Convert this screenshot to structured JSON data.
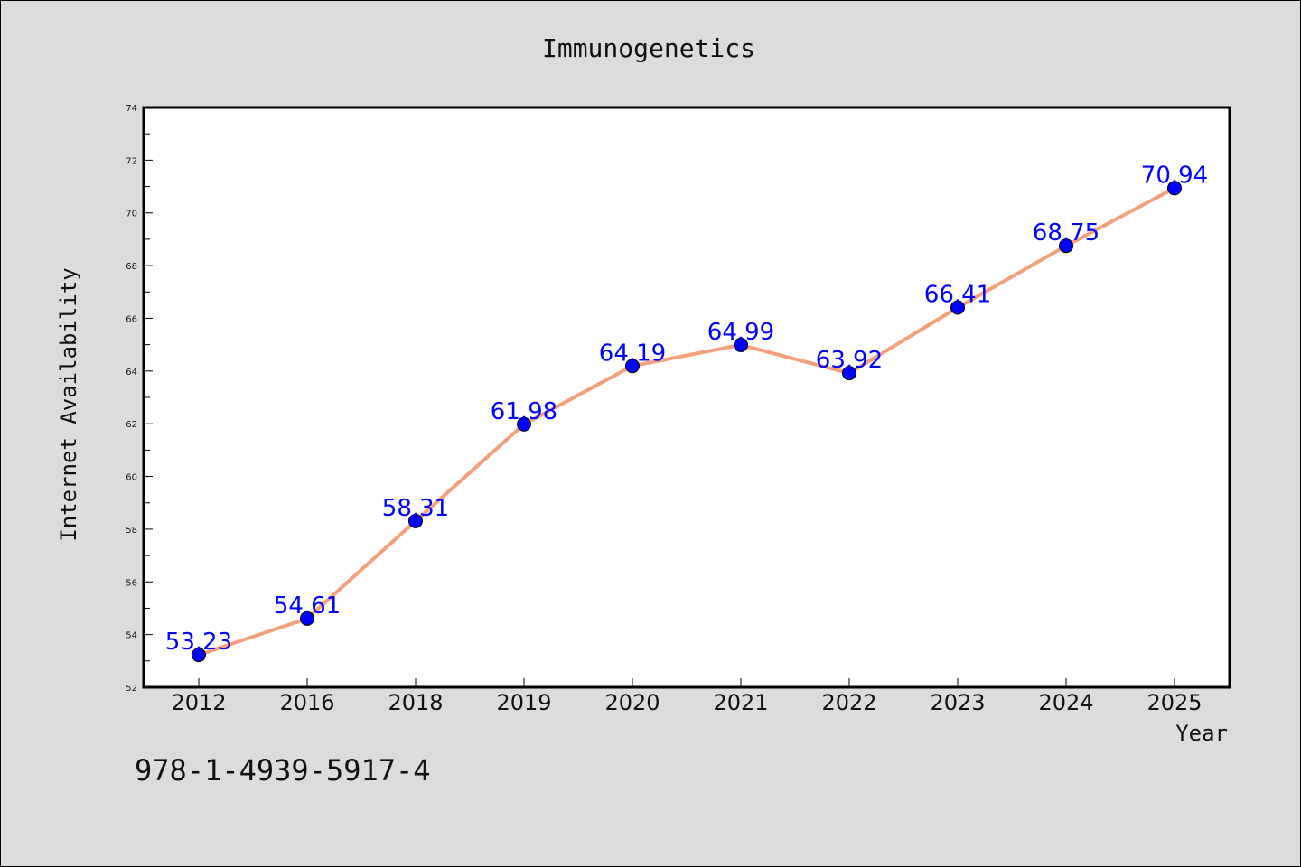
{
  "chart_data": {
    "type": "line",
    "title": "Immunogenetics",
    "xlabel": "Year",
    "ylabel": "Internet Availability",
    "categories": [
      "2012",
      "2016",
      "2018",
      "2019",
      "2020",
      "2021",
      "2022",
      "2023",
      "2024",
      "2025"
    ],
    "series": [
      {
        "values": [
          53.23,
          54.61,
          58.31,
          61.98,
          64.19,
          64.99,
          63.92,
          66.41,
          68.75,
          70.94
        ],
        "data_labels": [
          "53.23",
          "54.61",
          "58.31",
          "61.98",
          "64.19",
          "64.99",
          "63.92",
          "66.41",
          "68.75",
          "70.94"
        ],
        "line_color": "#f4a07a",
        "marker_color": "#0000ff"
      }
    ],
    "ylim": [
      52,
      74
    ],
    "y_ticks": [
      "52",
      "54",
      "56",
      "58",
      "60",
      "62",
      "64",
      "66",
      "68",
      "70",
      "72",
      "74"
    ],
    "grid": false,
    "legend": "none"
  },
  "footer": {
    "isbn": "978-1-4939-5917-4"
  },
  "colors": {
    "background": "#dcdcdc",
    "plot_background": "#ffffff"
  }
}
